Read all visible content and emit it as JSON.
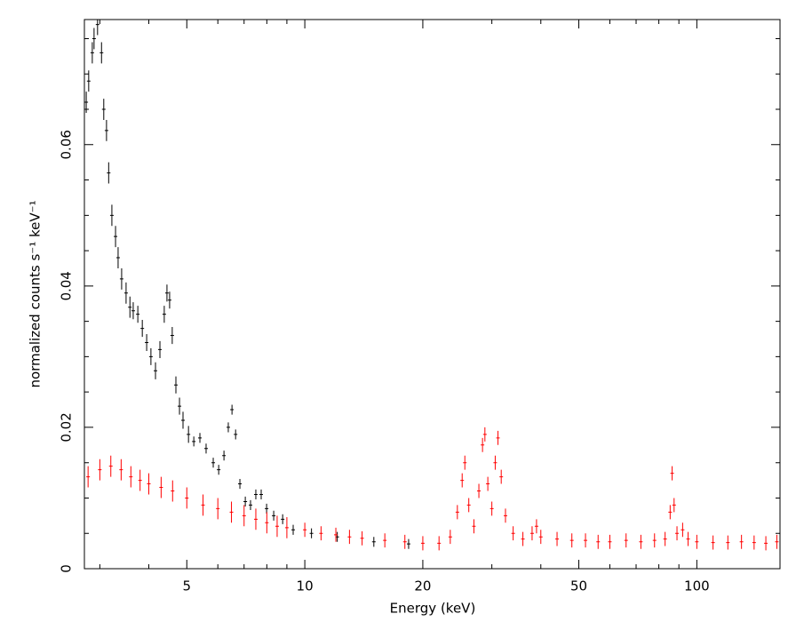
{
  "chart_data": {
    "type": "errorbar",
    "xlabel": "Energy (keV)",
    "ylabel": "normalized counts s⁻¹ keV⁻¹",
    "xscale": "log",
    "xlim": [
      2.74,
      163
    ],
    "ylim": [
      0,
      0.0777
    ],
    "xticks": [
      5,
      10,
      20,
      50,
      100
    ],
    "xminorticks": [
      3,
      4,
      6,
      7,
      8,
      9,
      30,
      40,
      60,
      70,
      80,
      90
    ],
    "yticks": [
      0,
      0.02,
      0.04,
      0.06
    ],
    "yminorticks": [
      0.005,
      0.01,
      0.015,
      0.025,
      0.03,
      0.035,
      0.045,
      0.05,
      0.055,
      0.065,
      0.07,
      0.075
    ],
    "series": [
      {
        "color": "#000000",
        "x": [
          2.77,
          2.81,
          2.87,
          2.9,
          2.96,
          3.03,
          3.07,
          3.12,
          3.16,
          3.22,
          3.29,
          3.34,
          3.41,
          3.5,
          3.58,
          3.65,
          3.75,
          3.85,
          3.95,
          4.05,
          4.16,
          4.27,
          4.38,
          4.45,
          4.52,
          4.59,
          4.69,
          4.79,
          4.89,
          5.05,
          5.21,
          5.4,
          5.6,
          5.84,
          6.03,
          6.22,
          6.38,
          6.52,
          6.66,
          6.83,
          7.05,
          7.27,
          7.5,
          7.74,
          7.99,
          8.33,
          8.78,
          9.34,
          10.4,
          12.1,
          15,
          18.4
        ],
        "values": [
          0.066,
          0.069,
          0.073,
          0.075,
          0.077,
          0.073,
          0.065,
          0.062,
          0.056,
          0.05,
          0.047,
          0.044,
          0.041,
          0.039,
          0.037,
          0.0365,
          0.036,
          0.034,
          0.032,
          0.03,
          0.028,
          0.031,
          0.036,
          0.039,
          0.038,
          0.033,
          0.026,
          0.023,
          0.021,
          0.019,
          0.018,
          0.0185,
          0.017,
          0.015,
          0.014,
          0.016,
          0.02,
          0.0225,
          0.019,
          0.012,
          0.0095,
          0.009,
          0.0105,
          0.0105,
          0.0085,
          0.0075,
          0.007,
          0.0055,
          0.005,
          0.0045,
          0.0038,
          0.0035
        ],
        "errors": [
          0.0015,
          0.0015,
          0.0015,
          0.0015,
          0.0015,
          0.0015,
          0.0015,
          0.0015,
          0.0015,
          0.0015,
          0.0015,
          0.0015,
          0.0015,
          0.0015,
          0.0015,
          0.0012,
          0.0012,
          0.0012,
          0.0012,
          0.0012,
          0.0012,
          0.0012,
          0.0012,
          0.0012,
          0.0012,
          0.0012,
          0.0012,
          0.0012,
          0.0012,
          0.0012,
          0.0007,
          0.0007,
          0.0007,
          0.0007,
          0.0007,
          0.0007,
          0.0007,
          0.0007,
          0.0007,
          0.0007,
          0.0007,
          0.0007,
          0.0007,
          0.0007,
          0.0007,
          0.0007,
          0.0007,
          0.0007,
          0.0007,
          0.0007,
          0.0007,
          0.0007
        ]
      },
      {
        "color": "#ff0000",
        "x": [
          2.8,
          3.0,
          3.2,
          3.4,
          3.6,
          3.8,
          4.0,
          4.3,
          4.6,
          5.0,
          5.5,
          6.0,
          6.5,
          7.0,
          7.5,
          8,
          8.5,
          9,
          10,
          11,
          12,
          13,
          14,
          16,
          18,
          20,
          22,
          23.5,
          24.5,
          25.2,
          25.6,
          26.2,
          27,
          27.8,
          28.4,
          28.8,
          29.3,
          30,
          30.6,
          31.1,
          31.7,
          32.5,
          34,
          36,
          38,
          39,
          40,
          44,
          48,
          52,
          56,
          60,
          66,
          72,
          78,
          83,
          85.5,
          86.5,
          87.5,
          89,
          92,
          95,
          100,
          110,
          120,
          130,
          140,
          150,
          160
        ],
        "values": [
          0.013,
          0.014,
          0.0145,
          0.014,
          0.013,
          0.0125,
          0.012,
          0.0115,
          0.011,
          0.01,
          0.009,
          0.0085,
          0.008,
          0.0075,
          0.007,
          0.0065,
          0.006,
          0.0058,
          0.0055,
          0.005,
          0.0048,
          0.0045,
          0.0043,
          0.004,
          0.0038,
          0.0036,
          0.0036,
          0.0045,
          0.008,
          0.0125,
          0.015,
          0.009,
          0.006,
          0.011,
          0.0175,
          0.019,
          0.012,
          0.0085,
          0.015,
          0.0185,
          0.013,
          0.0075,
          0.005,
          0.0042,
          0.005,
          0.006,
          0.0045,
          0.0042,
          0.004,
          0.004,
          0.0038,
          0.0038,
          0.004,
          0.0038,
          0.004,
          0.0042,
          0.008,
          0.0135,
          0.009,
          0.005,
          0.0055,
          0.0042,
          0.0038,
          0.0037,
          0.0037,
          0.0038,
          0.0037,
          0.0036,
          0.0038
        ],
        "errors": [
          0.0015,
          0.0015,
          0.0015,
          0.0015,
          0.0015,
          0.0015,
          0.0015,
          0.0015,
          0.0015,
          0.0015,
          0.0015,
          0.0015,
          0.0015,
          0.0015,
          0.0015,
          0.0015,
          0.0015,
          0.0015,
          0.001,
          0.001,
          0.001,
          0.001,
          0.001,
          0.001,
          0.001,
          0.001,
          0.001,
          0.001,
          0.001,
          0.001,
          0.001,
          0.001,
          0.001,
          0.001,
          0.001,
          0.001,
          0.001,
          0.001,
          0.001,
          0.001,
          0.001,
          0.001,
          0.001,
          0.001,
          0.001,
          0.001,
          0.001,
          0.001,
          0.001,
          0.001,
          0.001,
          0.001,
          0.001,
          0.001,
          0.001,
          0.001,
          0.001,
          0.001,
          0.001,
          0.001,
          0.001,
          0.001,
          0.001,
          0.001,
          0.001,
          0.001,
          0.001,
          0.001,
          0.001
        ]
      }
    ]
  }
}
